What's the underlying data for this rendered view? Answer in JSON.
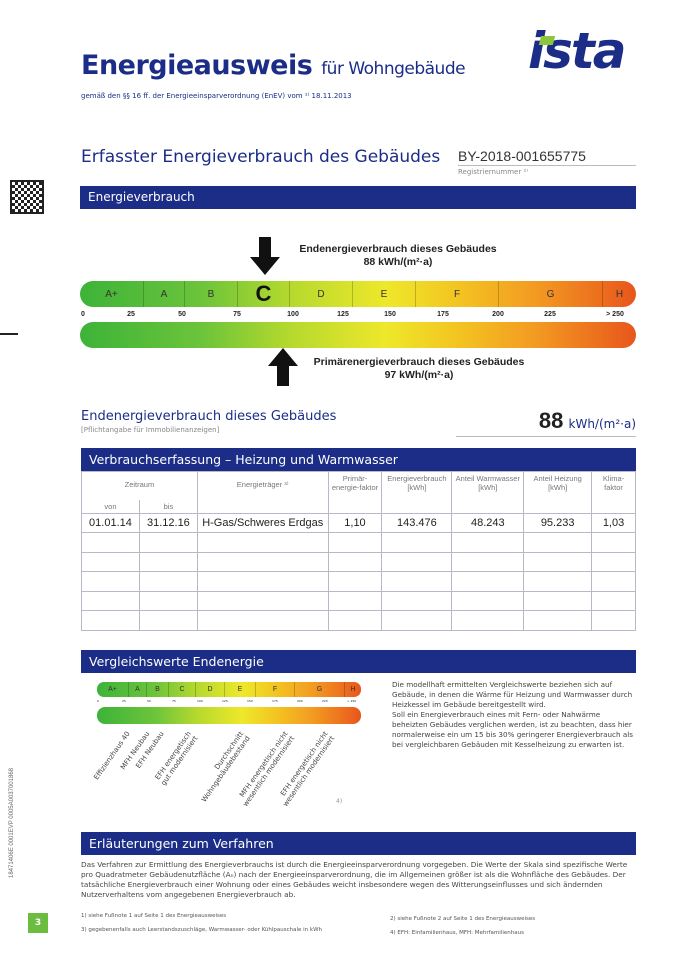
{
  "header": {
    "title": "Energieausweis",
    "title_suffix": "für Wohngebäude",
    "subtitle": "gemäß den §§ 16 ff. der Energieeinsparverordnung (EnEV) vom ¹⁾ 18.11.2013",
    "logo": "ista"
  },
  "section_title": "Erfasster Energieverbrauch des Gebäudes",
  "registration": {
    "number": "BY-2018-001655775",
    "label": "Registriernummer ²⁾"
  },
  "energy_bar": {
    "title": "Energieverbrauch"
  },
  "scale": {
    "classes": [
      "A+",
      "A",
      "B",
      "C",
      "D",
      "E",
      "F",
      "G",
      "H"
    ],
    "active_class": "C",
    "ticks": [
      "0",
      "25",
      "50",
      "75",
      "100",
      "125",
      "150",
      "175",
      "200",
      "225",
      "> 250"
    ],
    "colors": {
      "green": "#3db339",
      "yellow": "#eee82a",
      "orange": "#f39a22",
      "red": "#e8561c"
    }
  },
  "end_energy": {
    "label": "Endenergieverbrauch dieses Gebäudes",
    "value_text": "88 kWh/(m²·a)",
    "value": 88
  },
  "primary_energy": {
    "label": "Primärenergieverbrauch dieses Gebäudes",
    "value_text": "97 kWh/(m²·a)",
    "value": 97
  },
  "summary": {
    "label": "Endenergieverbrauch dieses Gebäudes",
    "note": "[Pflichtangabe für Immobilienanzeigen]",
    "value": "88",
    "unit": "kWh/(m²·a)"
  },
  "table": {
    "title": "Verbrauchserfassung – Heizung und Warmwasser",
    "headers": {
      "zeitraum": "Zeitraum",
      "von": "von",
      "bis": "bis",
      "traeger": "Energieträger ³⁾",
      "primaer": "Primär-energie-faktor",
      "verbrauch": "Energieverbrauch [kWh]",
      "warmwasser": "Anteil Warmwasser [kWh]",
      "heizung": "Anteil Heizung [kWh]",
      "klima": "Klima-faktor"
    },
    "rows": [
      {
        "von": "01.01.14",
        "bis": "31.12.16",
        "traeger": "H-Gas/Schweres Erdgas",
        "primaer": "1,10",
        "verbrauch": "143.476",
        "warmwasser": "48.243",
        "heizung": "95.233",
        "klima": "1,03"
      }
    ]
  },
  "comparison": {
    "title": "Vergleichswerte Endenergie",
    "labels": [
      "Effizienzhaus 40",
      "MFH Neubau",
      "EFH Neubau",
      "EFH energetisch\ngut modernisiert",
      "Durchschnitt\nWohngebäudebestand",
      "MFH energetisch nicht\nwesentlich modernisiert",
      "EFH energetisch nicht\nwesentlich modernisiert"
    ],
    "footnote_mark": "4)",
    "text1": "Die modellhaft ermittelten Vergleichswerte beziehen sich auf Gebäude, in denen die Wärme für Heizung und Warmwasser durch Heizkessel im Gebäude bereitgestellt wird.",
    "text2": "Soll ein Energieverbrauch eines mit Fern- oder Nahwärme beheizten Gebäudes verglichen werden, ist zu beachten, dass hier normalerweise ein um 15 bis 30% geringerer Energieverbrauch als bei vergleichbaren Gebäuden mit Kesselheizung zu erwarten ist."
  },
  "explanation": {
    "title": "Erläuterungen zum Verfahren",
    "text": "Das Verfahren zur Ermittlung des Energieverbrauchs ist durch die Energieeinsparverordnung vorgegeben. Die Werte der Skala sind spezifische Werte pro Quadratmeter Gebäudenutzfläche (Aₙ) nach der Energieeinsparverordnung, die im Allgemeinen größer ist als die Wohnfläche des Gebäudes. Der tatsächliche Energieverbrauch einer Wohnung oder eines Gebäudes weicht insbesondere wegen des Witterungseinflusses und sich ändernden Nutzerverhaltens vom angegebenen Energieverbrauch ab."
  },
  "footnotes": [
    "1) siehe Fußnote 1 auf Seite 1 des Energieausweises",
    "2) siehe Fußnote 2 auf Seite 1 des Energieausweises",
    "3) gegebenenfalls auch Leerstandszuschläge, Warmwasser- oder Kühlpauschale in kWh",
    "4) EFH: Einfamilienhaus, MFH: Mehrfamilienhaus"
  ],
  "page_number": "3",
  "side_code": "18471406E 0001EVP 0005A0037001868"
}
